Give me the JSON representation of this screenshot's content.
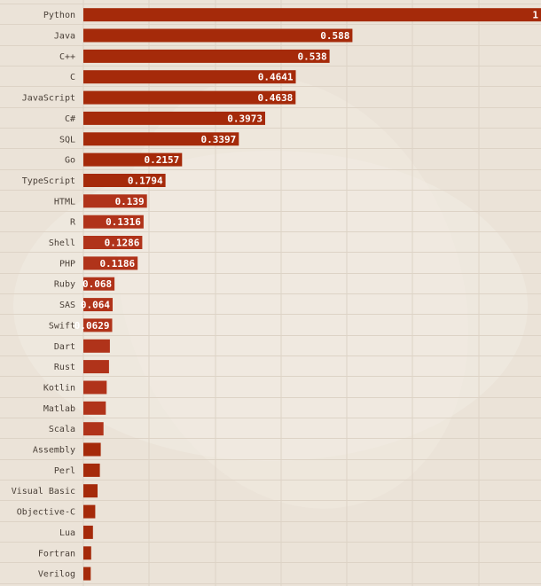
{
  "colors": {
    "background": "#ebe3d8",
    "bar": "#a52a0a",
    "bar_alt": "#b0331a",
    "grid": "#ddd3c6",
    "blob": "#f1ece3",
    "label": "#4a4038",
    "value_text": "#ffffff"
  },
  "chart_data": {
    "type": "bar",
    "orientation": "horizontal",
    "title": "",
    "xlabel": "",
    "ylabel": "",
    "xlim": [
      0,
      1
    ],
    "grid": true,
    "legend": "none",
    "categories": [
      "Python",
      "Java",
      "C++",
      "C",
      "JavaScript",
      "C#",
      "SQL",
      "Go",
      "TypeScript",
      "HTML",
      "R",
      "Shell",
      "PHP",
      "Ruby",
      "SAS",
      "Swift",
      "Dart",
      "Rust",
      "Kotlin",
      "Matlab",
      "Scala",
      "Assembly",
      "Perl",
      "Visual Basic",
      "Objective-C",
      "Lua",
      "Fortran",
      "Verilog"
    ],
    "values": [
      1,
      0.588,
      0.538,
      0.4641,
      0.4638,
      0.3973,
      0.3397,
      0.2157,
      0.1794,
      0.139,
      0.1316,
      0.1286,
      0.1186,
      0.068,
      0.064,
      0.0629,
      0.058,
      0.056,
      0.051,
      0.049,
      0.044,
      0.038,
      0.036,
      0.031,
      0.026,
      0.021,
      0.017,
      0.016
    ],
    "value_labels": [
      "1",
      "0.588",
      "0.538",
      "0.4641",
      "0.4638",
      "0.3973",
      "0.3397",
      "0.2157",
      "0.1794",
      "0.139",
      "0.1316",
      "0.1286",
      "0.1186",
      "0.068",
      "0.064",
      "0.0629",
      "",
      "",
      "",
      "",
      "",
      "",
      "",
      "",
      "",
      "",
      "",
      ""
    ]
  }
}
